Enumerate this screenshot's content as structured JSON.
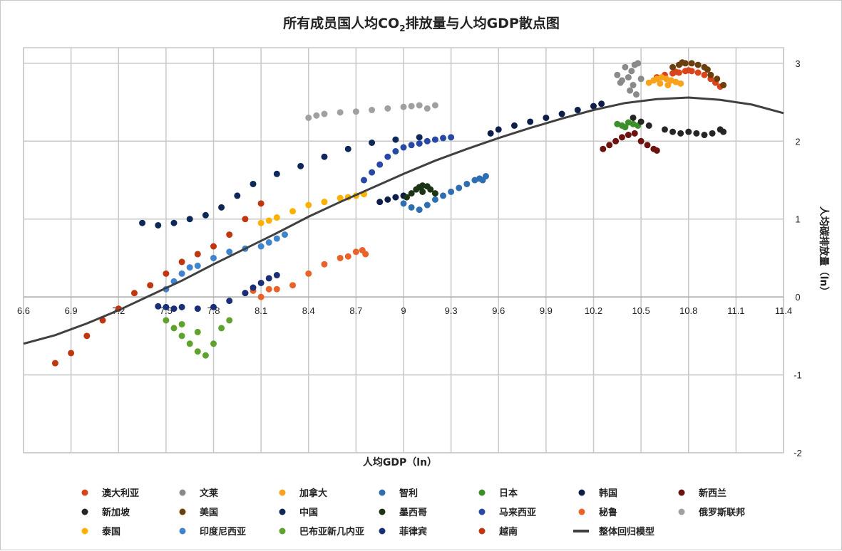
{
  "chart_data": {
    "type": "scatter",
    "title_main": "所有成员国人均CO",
    "title_sub": "2",
    "title_rest": "排放量与人均GDP散点图",
    "xlabel": "人均GDP（ln）",
    "ylabel": "人均碳排放量（ln）",
    "xlim": [
      6.6,
      11.4
    ],
    "ylim": [
      -2,
      3.2
    ],
    "xticks": [
      "6.6",
      "6.9",
      "7.2",
      "7.5",
      "7.8",
      "8.1",
      "8.4",
      "8.7",
      "9",
      "9.3",
      "9.6",
      "9.9",
      "10.2",
      "10.5",
      "10.8",
      "11.1",
      "11.4"
    ],
    "yticks": [
      "-2",
      "-1",
      "0",
      "1",
      "2",
      "3"
    ],
    "series": [
      {
        "name": "澳大利亚",
        "color": "#d9441a",
        "points": [
          [
            10.6,
            2.82
          ],
          [
            10.65,
            2.85
          ],
          [
            10.7,
            2.87
          ],
          [
            10.74,
            2.88
          ],
          [
            10.78,
            2.9
          ],
          [
            10.82,
            2.9
          ],
          [
            10.86,
            2.88
          ],
          [
            10.9,
            2.85
          ],
          [
            10.94,
            2.8
          ],
          [
            10.97,
            2.75
          ],
          [
            11.0,
            2.7
          ],
          [
            10.72,
            2.89
          ],
          [
            10.8,
            2.91
          ]
        ]
      },
      {
        "name": "文莱",
        "color": "#8a8a8a",
        "points": [
          [
            10.35,
            2.85
          ],
          [
            10.38,
            2.78
          ],
          [
            10.42,
            2.82
          ],
          [
            10.44,
            2.9
          ],
          [
            10.46,
            2.98
          ],
          [
            10.48,
            3.0
          ],
          [
            10.45,
            2.72
          ],
          [
            10.43,
            2.65
          ],
          [
            10.47,
            2.6
          ],
          [
            10.5,
            2.8
          ],
          [
            10.4,
            2.95
          ],
          [
            10.37,
            2.75
          ]
        ]
      },
      {
        "name": "加拿大",
        "color": "#f9a31b",
        "points": [
          [
            10.55,
            2.75
          ],
          [
            10.58,
            2.78
          ],
          [
            10.6,
            2.8
          ],
          [
            10.63,
            2.82
          ],
          [
            10.66,
            2.8
          ],
          [
            10.69,
            2.78
          ],
          [
            10.72,
            2.76
          ],
          [
            10.75,
            2.74
          ],
          [
            10.62,
            2.74
          ],
          [
            10.67,
            2.72
          ]
        ]
      },
      {
        "name": "智利",
        "color": "#2e6fb3",
        "points": [
          [
            9.0,
            1.2
          ],
          [
            9.05,
            1.15
          ],
          [
            9.1,
            1.12
          ],
          [
            9.15,
            1.18
          ],
          [
            9.2,
            1.25
          ],
          [
            9.25,
            1.3
          ],
          [
            9.3,
            1.35
          ],
          [
            9.35,
            1.4
          ],
          [
            9.4,
            1.45
          ],
          [
            9.45,
            1.5
          ],
          [
            9.48,
            1.52
          ],
          [
            9.5,
            1.5
          ],
          [
            9.52,
            1.55
          ]
        ]
      },
      {
        "name": "日本",
        "color": "#3a8f2a",
        "points": [
          [
            10.35,
            2.22
          ],
          [
            10.38,
            2.2
          ],
          [
            10.42,
            2.24
          ],
          [
            10.45,
            2.22
          ],
          [
            10.48,
            2.2
          ],
          [
            10.4,
            2.18
          ]
        ]
      },
      {
        "name": "韩国",
        "color": "#0d1e4a",
        "points": [
          [
            8.85,
            1.22
          ],
          [
            8.9,
            1.25
          ],
          [
            8.95,
            1.28
          ],
          [
            9.0,
            1.3
          ],
          [
            9.55,
            2.1
          ],
          [
            9.6,
            2.15
          ],
          [
            9.7,
            2.2
          ],
          [
            9.8,
            2.25
          ],
          [
            9.9,
            2.3
          ],
          [
            10.0,
            2.35
          ],
          [
            10.1,
            2.4
          ],
          [
            10.2,
            2.45
          ],
          [
            10.25,
            2.48
          ]
        ]
      },
      {
        "name": "新西兰",
        "color": "#6e1210",
        "points": [
          [
            10.26,
            1.9
          ],
          [
            10.3,
            1.95
          ],
          [
            10.34,
            2.0
          ],
          [
            10.38,
            2.05
          ],
          [
            10.42,
            2.08
          ],
          [
            10.46,
            2.1
          ],
          [
            10.5,
            2.0
          ],
          [
            10.54,
            1.95
          ],
          [
            10.58,
            1.9
          ],
          [
            10.6,
            1.88
          ]
        ]
      },
      {
        "name": "新加坡",
        "color": "#262626",
        "points": [
          [
            10.45,
            2.3
          ],
          [
            10.5,
            2.25
          ],
          [
            10.55,
            2.2
          ],
          [
            10.65,
            2.15
          ],
          [
            10.7,
            2.12
          ],
          [
            10.75,
            2.1
          ],
          [
            10.8,
            2.12
          ],
          [
            10.85,
            2.1
          ],
          [
            10.9,
            2.08
          ],
          [
            10.95,
            2.1
          ],
          [
            11.0,
            2.15
          ],
          [
            11.02,
            2.12
          ]
        ]
      },
      {
        "name": "美国",
        "color": "#6b3e0e",
        "points": [
          [
            10.7,
            2.95
          ],
          [
            10.74,
            2.98
          ],
          [
            10.78,
            3.0
          ],
          [
            10.82,
            3.0
          ],
          [
            10.86,
            2.98
          ],
          [
            10.9,
            2.95
          ],
          [
            10.94,
            2.85
          ],
          [
            10.98,
            2.8
          ],
          [
            11.02,
            2.72
          ],
          [
            10.76,
            3.01
          ],
          [
            10.92,
            2.92
          ]
        ]
      },
      {
        "name": "中国",
        "color": "#0e2958",
        "points": [
          [
            7.35,
            0.95
          ],
          [
            7.45,
            0.92
          ],
          [
            7.55,
            0.95
          ],
          [
            7.65,
            1.0
          ],
          [
            7.75,
            1.05
          ],
          [
            7.85,
            1.15
          ],
          [
            7.95,
            1.3
          ],
          [
            8.05,
            1.45
          ],
          [
            8.2,
            1.58
          ],
          [
            8.35,
            1.68
          ],
          [
            8.5,
            1.8
          ],
          [
            8.65,
            1.9
          ],
          [
            8.8,
            1.98
          ],
          [
            8.95,
            2.02
          ],
          [
            9.1,
            2.05
          ]
        ]
      },
      {
        "name": "墨西哥",
        "color": "#1c3314",
        "points": [
          [
            9.02,
            1.28
          ],
          [
            9.05,
            1.33
          ],
          [
            9.08,
            1.38
          ],
          [
            9.1,
            1.41
          ],
          [
            9.12,
            1.43
          ],
          [
            9.15,
            1.42
          ],
          [
            9.17,
            1.38
          ],
          [
            9.2,
            1.33
          ],
          [
            9.12,
            1.35
          ]
        ]
      },
      {
        "name": "马来西亚",
        "color": "#2848a8",
        "points": [
          [
            8.75,
            1.5
          ],
          [
            8.8,
            1.6
          ],
          [
            8.85,
            1.7
          ],
          [
            8.9,
            1.8
          ],
          [
            8.95,
            1.87
          ],
          [
            9.0,
            1.92
          ],
          [
            9.05,
            1.95
          ],
          [
            9.1,
            1.97
          ],
          [
            9.15,
            2.0
          ],
          [
            9.2,
            2.02
          ],
          [
            9.25,
            2.04
          ],
          [
            9.3,
            2.05
          ]
        ]
      },
      {
        "name": "秘鲁",
        "color": "#e8622a",
        "points": [
          [
            8.0,
            0.05
          ],
          [
            8.05,
            0.08
          ],
          [
            8.1,
            0.0
          ],
          [
            8.15,
            0.1
          ],
          [
            8.2,
            0.1
          ],
          [
            8.3,
            0.15
          ],
          [
            8.4,
            0.3
          ],
          [
            8.5,
            0.42
          ],
          [
            8.6,
            0.5
          ],
          [
            8.65,
            0.52
          ],
          [
            8.7,
            0.58
          ],
          [
            8.74,
            0.6
          ],
          [
            8.76,
            0.55
          ]
        ]
      },
      {
        "name": "俄罗斯联邦",
        "color": "#a0a0a0",
        "points": [
          [
            8.4,
            2.3
          ],
          [
            8.45,
            2.33
          ],
          [
            8.5,
            2.35
          ],
          [
            8.6,
            2.37
          ],
          [
            8.7,
            2.38
          ],
          [
            8.8,
            2.4
          ],
          [
            8.9,
            2.42
          ],
          [
            9.0,
            2.44
          ],
          [
            9.05,
            2.45
          ],
          [
            9.1,
            2.46
          ],
          [
            9.15,
            2.42
          ],
          [
            9.2,
            2.46
          ]
        ]
      },
      {
        "name": "泰国",
        "color": "#ffb000",
        "points": [
          [
            8.1,
            0.95
          ],
          [
            8.15,
            0.98
          ],
          [
            8.2,
            1.02
          ],
          [
            8.3,
            1.1
          ],
          [
            8.4,
            1.18
          ],
          [
            8.5,
            1.22
          ],
          [
            8.6,
            1.27
          ],
          [
            8.7,
            1.3
          ],
          [
            8.75,
            1.32
          ],
          [
            8.65,
            1.28
          ]
        ]
      },
      {
        "name": "印度尼西亚",
        "color": "#3f84cc",
        "points": [
          [
            7.5,
            0.1
          ],
          [
            7.55,
            0.2
          ],
          [
            7.6,
            0.3
          ],
          [
            7.7,
            0.4
          ],
          [
            7.8,
            0.5
          ],
          [
            7.9,
            0.58
          ],
          [
            8.0,
            0.62
          ],
          [
            8.1,
            0.65
          ],
          [
            8.15,
            0.7
          ],
          [
            8.2,
            0.75
          ],
          [
            8.25,
            0.8
          ],
          [
            7.65,
            0.38
          ]
        ]
      },
      {
        "name": "巴布亚新几内亚",
        "color": "#5fa32e",
        "points": [
          [
            7.5,
            -0.3
          ],
          [
            7.55,
            -0.4
          ],
          [
            7.6,
            -0.5
          ],
          [
            7.65,
            -0.6
          ],
          [
            7.7,
            -0.7
          ],
          [
            7.75,
            -0.75
          ],
          [
            7.8,
            -0.6
          ],
          [
            7.85,
            -0.4
          ],
          [
            7.9,
            -0.3
          ],
          [
            7.6,
            -0.35
          ],
          [
            7.7,
            -0.45
          ]
        ]
      },
      {
        "name": "菲律宾",
        "color": "#1a2f77",
        "points": [
          [
            7.45,
            -0.12
          ],
          [
            7.5,
            -0.13
          ],
          [
            7.55,
            -0.15
          ],
          [
            7.6,
            -0.13
          ],
          [
            7.7,
            -0.15
          ],
          [
            7.8,
            -0.13
          ],
          [
            7.9,
            -0.05
          ],
          [
            8.0,
            0.05
          ],
          [
            8.05,
            0.12
          ],
          [
            8.1,
            0.18
          ],
          [
            8.15,
            0.24
          ],
          [
            8.2,
            0.28
          ]
        ]
      },
      {
        "name": "越南",
        "color": "#c0360f",
        "points": [
          [
            6.8,
            -0.85
          ],
          [
            6.9,
            -0.72
          ],
          [
            7.0,
            -0.5
          ],
          [
            7.1,
            -0.3
          ],
          [
            7.2,
            -0.15
          ],
          [
            7.3,
            0.05
          ],
          [
            7.4,
            0.15
          ],
          [
            7.5,
            0.3
          ],
          [
            7.6,
            0.45
          ],
          [
            7.7,
            0.55
          ],
          [
            7.8,
            0.65
          ],
          [
            7.9,
            0.8
          ],
          [
            8.0,
            1.0
          ],
          [
            8.1,
            1.2
          ]
        ]
      }
    ],
    "regression": {
      "name": "整体回归模型",
      "color": "#404040",
      "points": [
        [
          6.6,
          -0.6
        ],
        [
          6.8,
          -0.49
        ],
        [
          7.0,
          -0.34
        ],
        [
          7.2,
          -0.17
        ],
        [
          7.4,
          0.02
        ],
        [
          7.6,
          0.21
        ],
        [
          7.8,
          0.42
        ],
        [
          8.0,
          0.62
        ],
        [
          8.2,
          0.82
        ],
        [
          8.4,
          1.03
        ],
        [
          8.6,
          1.22
        ],
        [
          8.8,
          1.4
        ],
        [
          9.0,
          1.58
        ],
        [
          9.2,
          1.75
        ],
        [
          9.4,
          1.9
        ],
        [
          9.6,
          2.04
        ],
        [
          9.8,
          2.17
        ],
        [
          10.0,
          2.29
        ],
        [
          10.2,
          2.4
        ],
        [
          10.4,
          2.49
        ],
        [
          10.6,
          2.54
        ],
        [
          10.8,
          2.56
        ],
        [
          11.0,
          2.53
        ],
        [
          11.2,
          2.47
        ],
        [
          11.4,
          2.36
        ]
      ]
    }
  }
}
